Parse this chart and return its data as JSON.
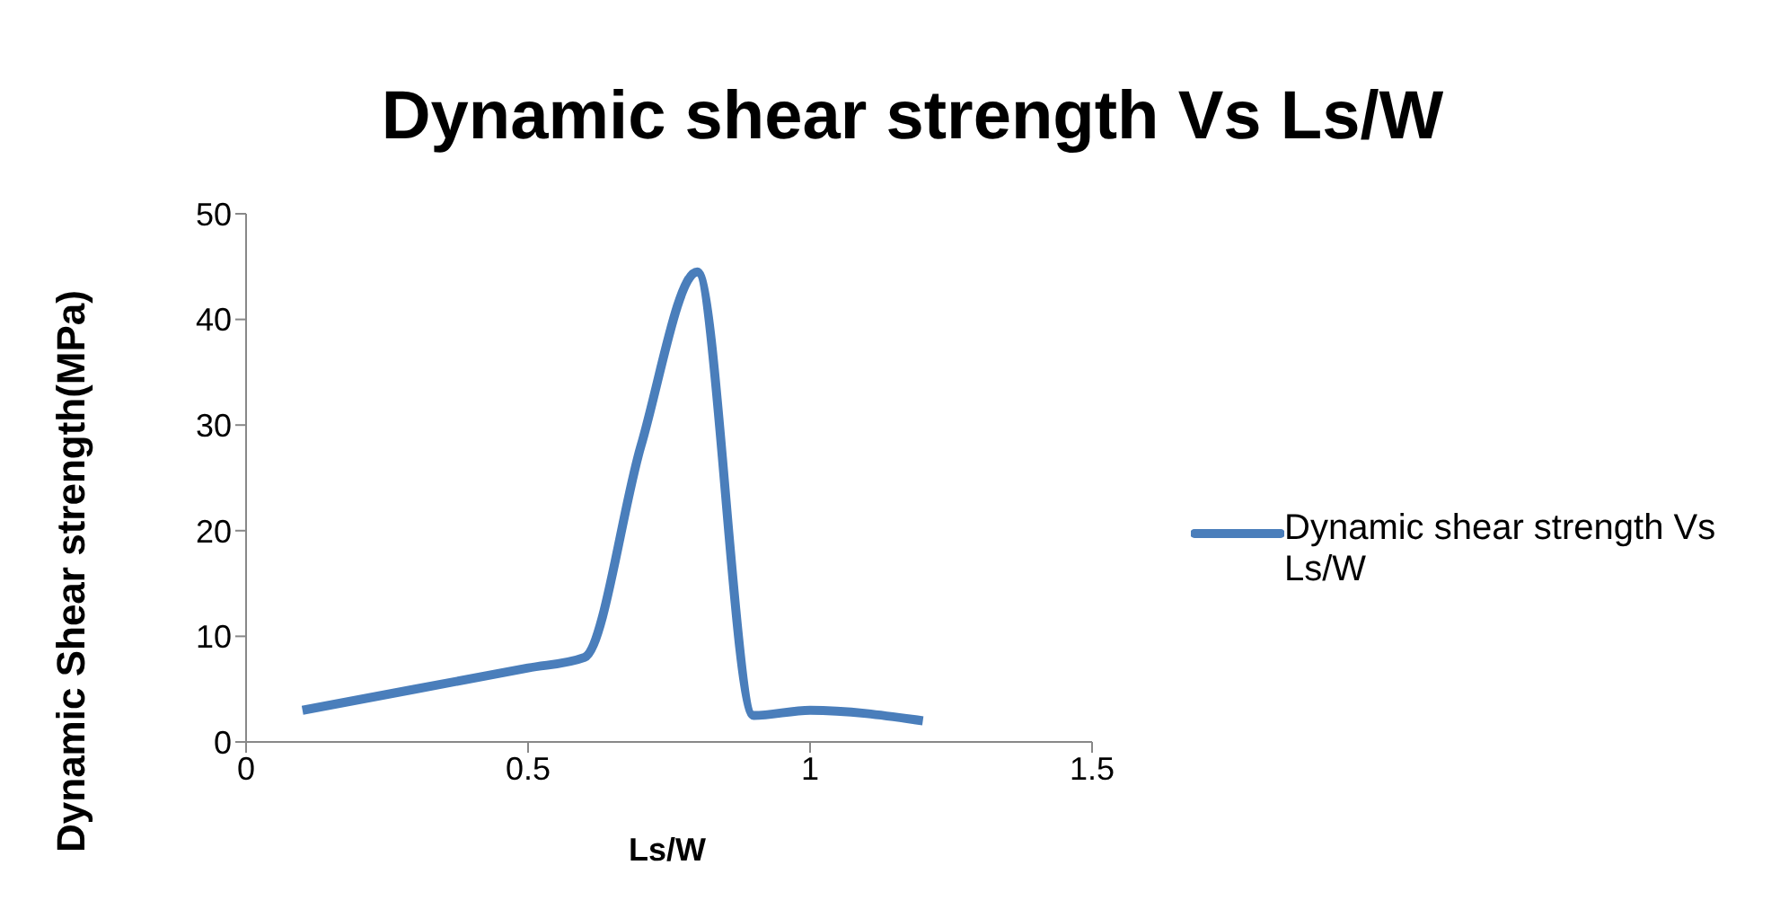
{
  "chart_data": {
    "type": "line",
    "title": "Dynamic shear strength Vs Ls/W",
    "xlabel": "Ls/W",
    "ylabel": "Dynamic Shear strength(MPa)",
    "x": [
      0.1,
      0.5,
      0.6,
      0.7,
      0.8,
      0.9,
      1.0,
      1.2
    ],
    "series": [
      {
        "name": "Dynamic shear strength Vs Ls/W",
        "color": "#4a7ebb",
        "values": [
          3,
          7,
          8,
          28,
          44.5,
          2.5,
          3,
          2
        ]
      }
    ],
    "xlim": [
      0,
      1.5
    ],
    "xticks": [
      0,
      0.5,
      1,
      1.5
    ],
    "ylim": [
      0,
      50
    ],
    "yticks": [
      0,
      10,
      20,
      30,
      40,
      50
    ],
    "grid": false,
    "legend": "right",
    "marker": "none",
    "line_style": "solid"
  }
}
